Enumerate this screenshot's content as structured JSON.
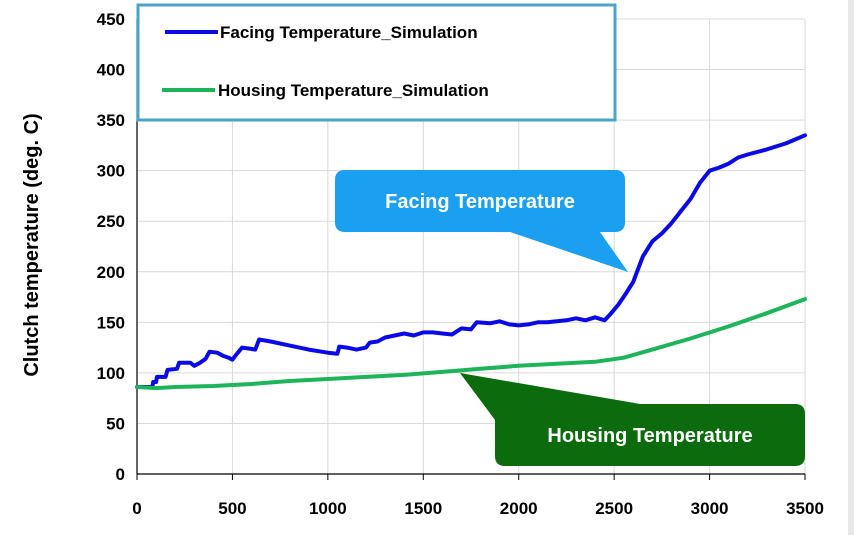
{
  "chart_data": {
    "type": "line",
    "ylabel": "Clutch  temperature (deg. C)",
    "xlabel": "",
    "xlim": [
      0,
      3500
    ],
    "ylim": [
      0,
      450
    ],
    "xticks": [
      "0",
      "500",
      "1000",
      "1500",
      "2000",
      "2500",
      "3000",
      "3500"
    ],
    "yticks": [
      "0",
      "50",
      "100",
      "150",
      "200",
      "250",
      "300",
      "350",
      "400",
      "450"
    ],
    "grid": true,
    "legend_position": "top-left",
    "series": [
      {
        "name": "Facing Temperature_Simulation",
        "color": "#0a0ae6",
        "points": [
          [
            0,
            86
          ],
          [
            50,
            86
          ],
          [
            80,
            86
          ],
          [
            85,
            91
          ],
          [
            100,
            91
          ],
          [
            105,
            96
          ],
          [
            150,
            96
          ],
          [
            160,
            103
          ],
          [
            210,
            104
          ],
          [
            220,
            110
          ],
          [
            280,
            110
          ],
          [
            300,
            107
          ],
          [
            330,
            110
          ],
          [
            360,
            114
          ],
          [
            380,
            121
          ],
          [
            420,
            120
          ],
          [
            450,
            117
          ],
          [
            480,
            115
          ],
          [
            500,
            113
          ],
          [
            520,
            118
          ],
          [
            550,
            125
          ],
          [
            590,
            124
          ],
          [
            620,
            123
          ],
          [
            640,
            133
          ],
          [
            700,
            131
          ],
          [
            800,
            127
          ],
          [
            900,
            123
          ],
          [
            1000,
            120
          ],
          [
            1050,
            119
          ],
          [
            1060,
            126
          ],
          [
            1100,
            125
          ],
          [
            1150,
            123
          ],
          [
            1200,
            125
          ],
          [
            1220,
            130
          ],
          [
            1260,
            131
          ],
          [
            1300,
            135
          ],
          [
            1350,
            137
          ],
          [
            1400,
            139
          ],
          [
            1450,
            137
          ],
          [
            1500,
            140
          ],
          [
            1550,
            140
          ],
          [
            1600,
            139
          ],
          [
            1650,
            138
          ],
          [
            1700,
            144
          ],
          [
            1750,
            143
          ],
          [
            1780,
            150
          ],
          [
            1850,
            149
          ],
          [
            1900,
            151
          ],
          [
            1950,
            148
          ],
          [
            2000,
            147
          ],
          [
            2050,
            148
          ],
          [
            2100,
            150
          ],
          [
            2150,
            150
          ],
          [
            2200,
            151
          ],
          [
            2250,
            152
          ],
          [
            2300,
            154
          ],
          [
            2350,
            152
          ],
          [
            2400,
            155
          ],
          [
            2450,
            152
          ],
          [
            2480,
            158
          ],
          [
            2520,
            167
          ],
          [
            2560,
            178
          ],
          [
            2600,
            190
          ],
          [
            2620,
            200
          ],
          [
            2650,
            215
          ],
          [
            2700,
            230
          ],
          [
            2750,
            238
          ],
          [
            2800,
            248
          ],
          [
            2850,
            260
          ],
          [
            2900,
            272
          ],
          [
            2950,
            288
          ],
          [
            3000,
            300
          ],
          [
            3050,
            303
          ],
          [
            3100,
            307
          ],
          [
            3150,
            313
          ],
          [
            3200,
            316
          ],
          [
            3300,
            321
          ],
          [
            3400,
            327
          ],
          [
            3500,
            335
          ]
        ]
      },
      {
        "name": "Housing Temperature_Simulation",
        "color": "#1eb45a",
        "points": [
          [
            0,
            86
          ],
          [
            100,
            85
          ],
          [
            200,
            86
          ],
          [
            400,
            87
          ],
          [
            600,
            89
          ],
          [
            800,
            92
          ],
          [
            1000,
            94
          ],
          [
            1200,
            96
          ],
          [
            1400,
            98
          ],
          [
            1600,
            101
          ],
          [
            1800,
            104
          ],
          [
            2000,
            107
          ],
          [
            2200,
            109
          ],
          [
            2400,
            111
          ],
          [
            2550,
            115
          ],
          [
            2700,
            123
          ],
          [
            2900,
            134
          ],
          [
            3100,
            146
          ],
          [
            3300,
            159
          ],
          [
            3500,
            173
          ]
        ]
      }
    ],
    "annotations": [
      {
        "text": "Facing Temperature",
        "target": [
          2600,
          190
        ],
        "color": "#1b9ff0"
      },
      {
        "text": "Housing Temperature",
        "target": [
          1700,
          102
        ],
        "color": "#0c6b0c"
      }
    ]
  }
}
